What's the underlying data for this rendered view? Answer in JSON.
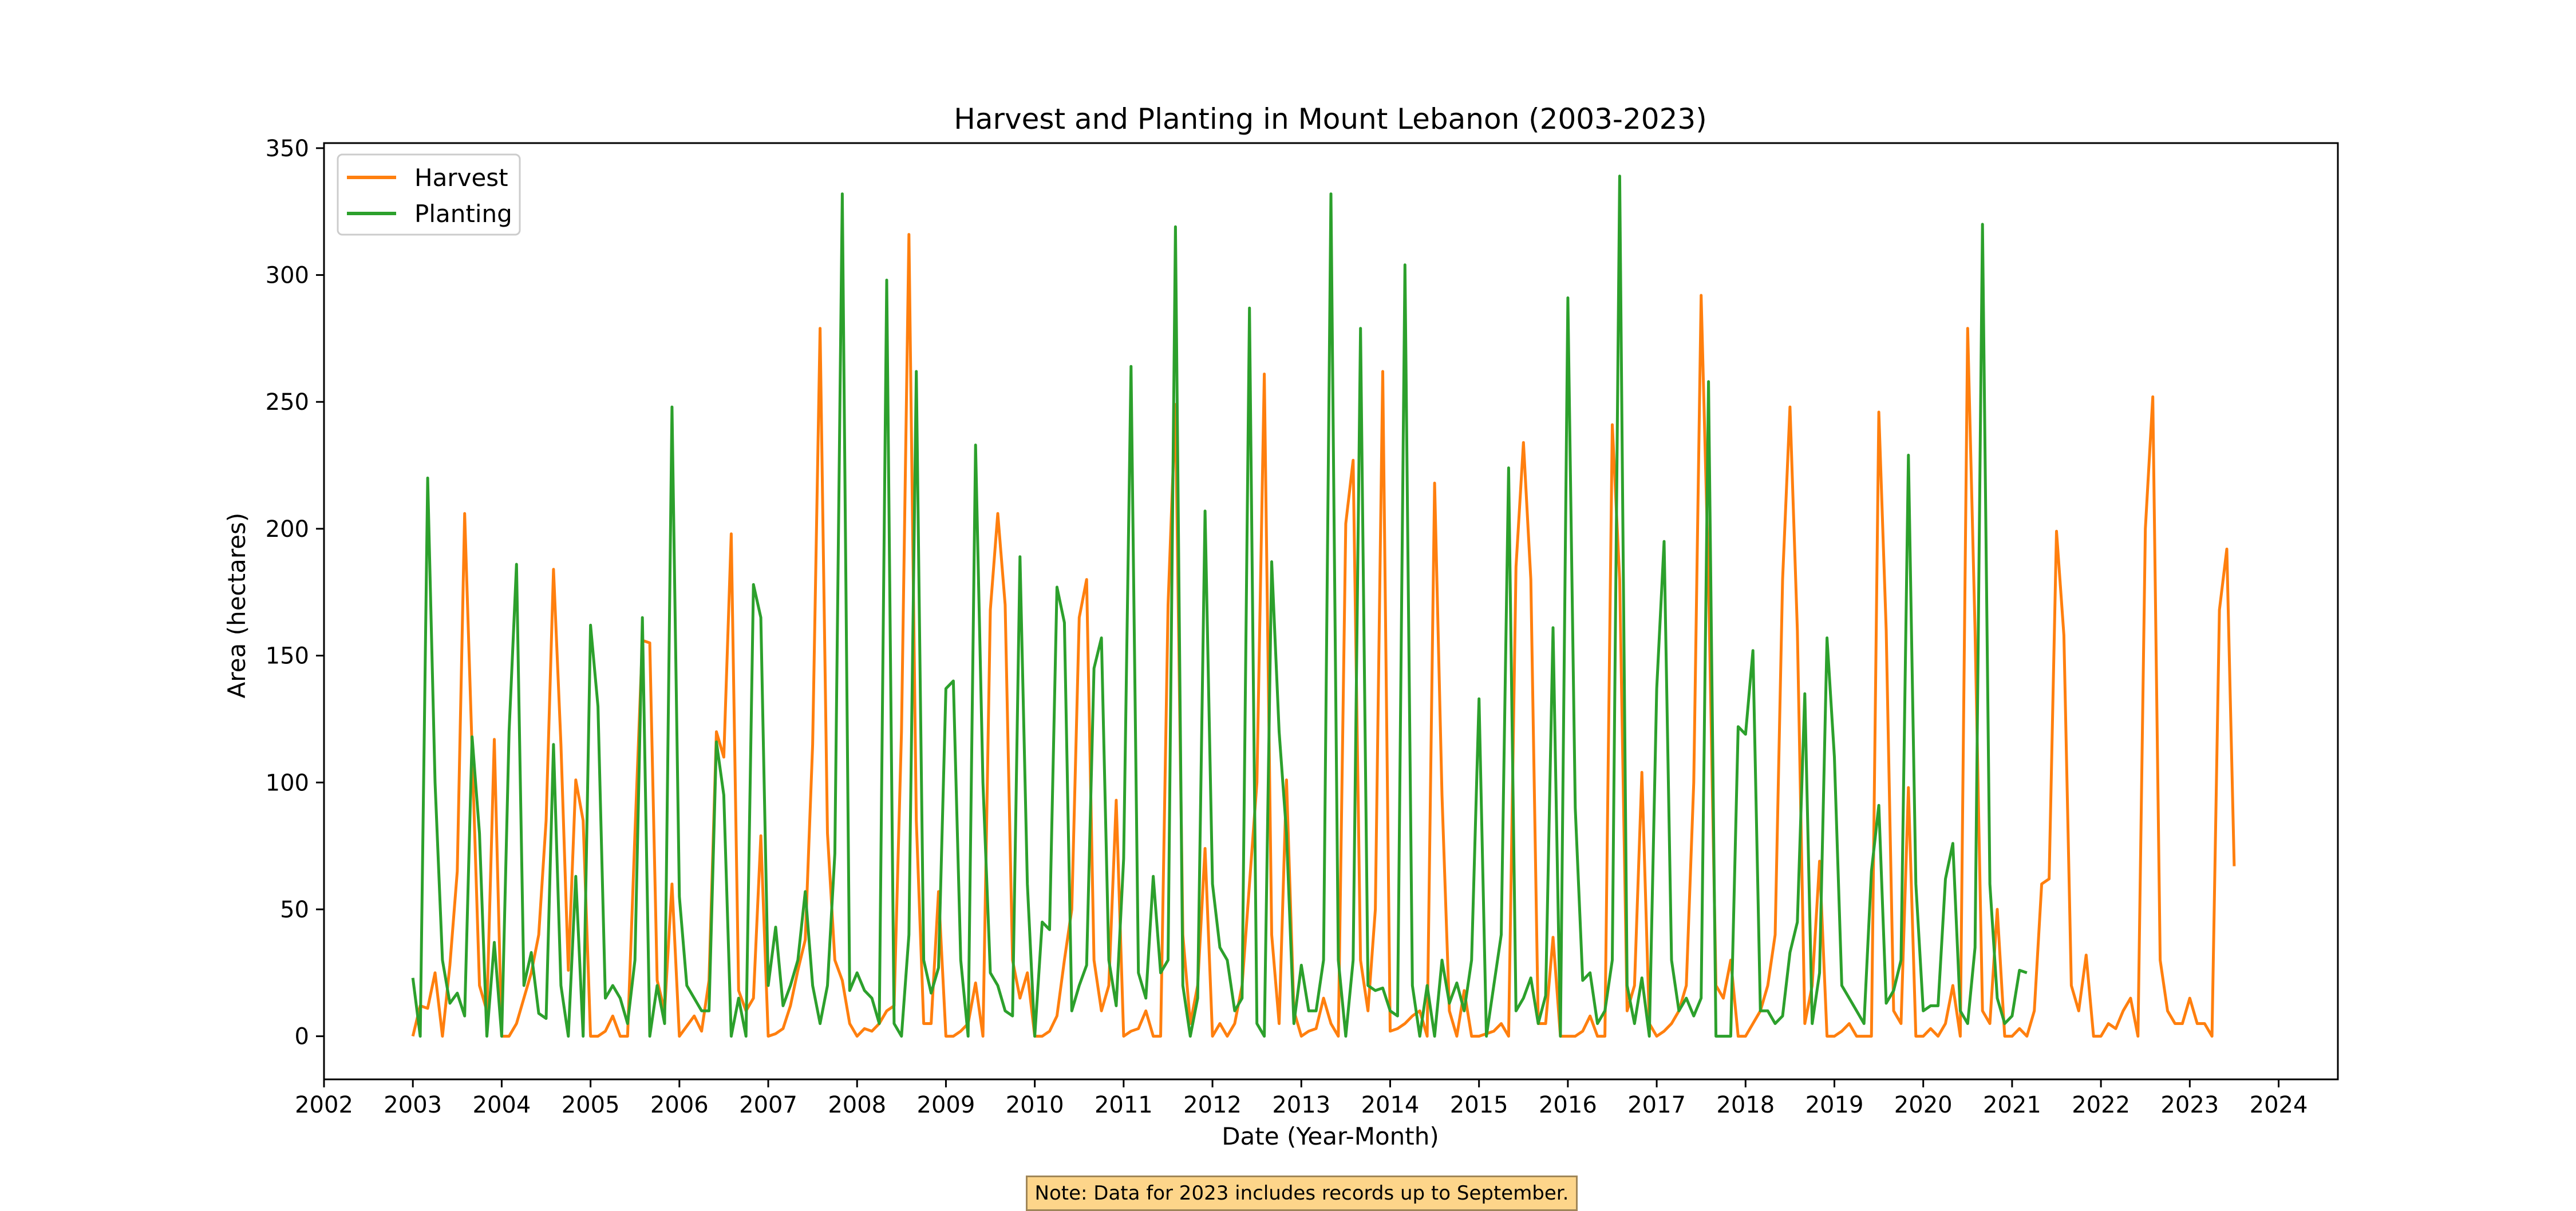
{
  "note": "Note: Data for 2023 includes records up to September.",
  "chart_data": {
    "type": "line",
    "title": "Harvest and Planting in Mount Lebanon (2003-2023)",
    "xlabel": "Date (Year-Month)",
    "ylabel": "Area (hectares)",
    "x_start": "2003-01",
    "x_end": "2023-09",
    "xlim": [
      "2002-01",
      "2024-09"
    ],
    "ylim": [
      -17,
      352
    ],
    "xticks": [
      "2002",
      "2003",
      "2004",
      "2005",
      "2006",
      "2007",
      "2008",
      "2009",
      "2010",
      "2011",
      "2012",
      "2013",
      "2014",
      "2015",
      "2016",
      "2017",
      "2018",
      "2019",
      "2020",
      "2021",
      "2022",
      "2023",
      "2024"
    ],
    "yticks": [
      0,
      50,
      100,
      150,
      200,
      250,
      300,
      350
    ],
    "grid": false,
    "legend_position": "top-left",
    "series": [
      {
        "name": "Harvest",
        "color": "#ff7f0e",
        "values": [
          0,
          12,
          11,
          25,
          0,
          28,
          65,
          206,
          113,
          20,
          10,
          117,
          0,
          0,
          5,
          15,
          25,
          40,
          85,
          184,
          115,
          26,
          101,
          85,
          0,
          0,
          2,
          8,
          0,
          0,
          80,
          156,
          155,
          22,
          10,
          60,
          0,
          4,
          8,
          2,
          22,
          120,
          110,
          198,
          18,
          10,
          15,
          79,
          0,
          1,
          3,
          12,
          26,
          38,
          115,
          279,
          80,
          30,
          22,
          5,
          0,
          3,
          2,
          5,
          10,
          12,
          120,
          316,
          85,
          5,
          5,
          57,
          0,
          0,
          2,
          5,
          21,
          0,
          168,
          206,
          170,
          30,
          15,
          25,
          0,
          0,
          2,
          8,
          30,
          50,
          165,
          180,
          30,
          10,
          20,
          93,
          0,
          2,
          3,
          10,
          0,
          0,
          170,
          249,
          40,
          5,
          20,
          74,
          0,
          5,
          0,
          5,
          20,
          60,
          100,
          261,
          40,
          5,
          101,
          10,
          0,
          2,
          3,
          15,
          5,
          0,
          202,
          227,
          30,
          10,
          50,
          262,
          2,
          3,
          5,
          8,
          10,
          0,
          218,
          95,
          10,
          0,
          18,
          0,
          0,
          1,
          2,
          5,
          0,
          185,
          234,
          180,
          5,
          5,
          39,
          0,
          0,
          0,
          2,
          8,
          0,
          0,
          241,
          180,
          10,
          20,
          104,
          5,
          0,
          2,
          5,
          10,
          20,
          100,
          292,
          180,
          20,
          15,
          30,
          0,
          0,
          5,
          10,
          20,
          40,
          180,
          248,
          160,
          5,
          20,
          69,
          0,
          0,
          2,
          5,
          0,
          0,
          0,
          246,
          160,
          10,
          5,
          98,
          0,
          0,
          3,
          0,
          5,
          20,
          0,
          279,
          160,
          10,
          5,
          50,
          0,
          0,
          3,
          0,
          10,
          60,
          62,
          199,
          158,
          20,
          10,
          32,
          0,
          0,
          5,
          3,
          10,
          15,
          0,
          200,
          252,
          30,
          10,
          5,
          5,
          15,
          5,
          5,
          0,
          168,
          192,
          67
        ]
      },
      {
        "name": "Planting",
        "color": "#2ca02c",
        "values": [
          23,
          0,
          220,
          100,
          30,
          13,
          17,
          8,
          118,
          80,
          0,
          37,
          0,
          120,
          186,
          20,
          33,
          9,
          7,
          115,
          20,
          0,
          63,
          0,
          162,
          130,
          15,
          20,
          15,
          5,
          30,
          165,
          0,
          20,
          5,
          248,
          55,
          20,
          15,
          10,
          10,
          116,
          95,
          0,
          15,
          0,
          178,
          165,
          20,
          43,
          12,
          20,
          30,
          57,
          20,
          5,
          20,
          72,
          332,
          18,
          25,
          18,
          15,
          5,
          298,
          5,
          0,
          40,
          262,
          30,
          17,
          27,
          137,
          140,
          30,
          0,
          233,
          100,
          25,
          20,
          10,
          8,
          189,
          60,
          0,
          45,
          42,
          177,
          163,
          10,
          20,
          28,
          145,
          157,
          30,
          12,
          70,
          264,
          25,
          15,
          63,
          25,
          30,
          319,
          20,
          0,
          15,
          207,
          60,
          35,
          30,
          10,
          15,
          287,
          5,
          0,
          187,
          120,
          80,
          5,
          28,
          10,
          10,
          30,
          332,
          30,
          0,
          30,
          279,
          20,
          18,
          19,
          10,
          8,
          304,
          20,
          0,
          20,
          0,
          30,
          13,
          21,
          10,
          30,
          133,
          0,
          20,
          40,
          224,
          10,
          15,
          23,
          5,
          16,
          161,
          0,
          291,
          90,
          22,
          25,
          5,
          10,
          30,
          339,
          20,
          5,
          23,
          0,
          137,
          195,
          30,
          10,
          15,
          8,
          15,
          258,
          0,
          0,
          0,
          122,
          119,
          152,
          10,
          10,
          5,
          8,
          33,
          45,
          135,
          5,
          25,
          157,
          110,
          20,
          15,
          10,
          5,
          65,
          91,
          13,
          18,
          30,
          229,
          60,
          10,
          12,
          12,
          62,
          76,
          10,
          5,
          35,
          320,
          60,
          15,
          5,
          8,
          26,
          25
        ]
      }
    ]
  }
}
